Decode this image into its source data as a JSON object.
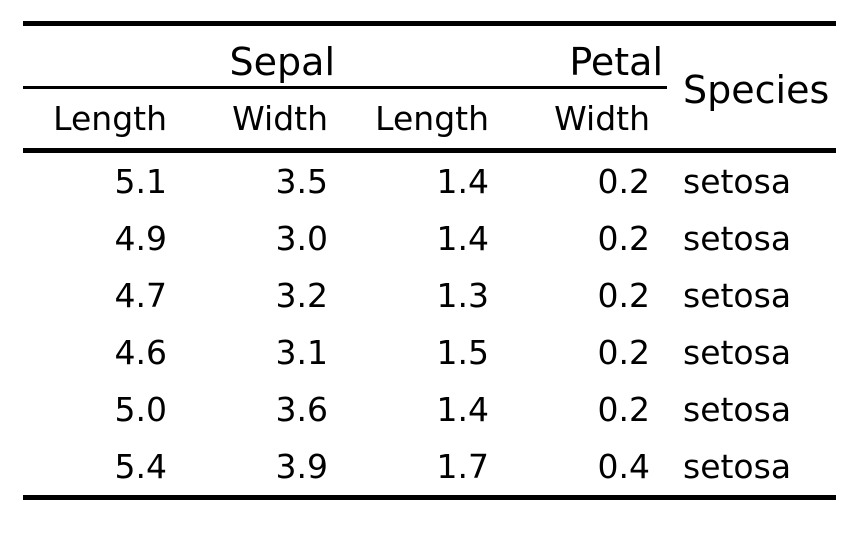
{
  "chart_data": {
    "type": "table",
    "spanners": [
      "Sepal",
      "Petal"
    ],
    "species_header": "Species",
    "sub_headers": [
      "Length",
      "Width",
      "Length",
      "Width"
    ],
    "column_groups": {
      "Sepal": [
        "Length",
        "Width"
      ],
      "Petal": [
        "Length",
        "Width"
      ]
    },
    "rows": [
      [
        "5.1",
        "3.5",
        "1.4",
        "0.2",
        "setosa"
      ],
      [
        "4.9",
        "3.0",
        "1.4",
        "0.2",
        "setosa"
      ],
      [
        "4.7",
        "3.2",
        "1.3",
        "0.2",
        "setosa"
      ],
      [
        "4.6",
        "3.1",
        "1.5",
        "0.2",
        "setosa"
      ],
      [
        "5.0",
        "3.6",
        "1.4",
        "0.2",
        "setosa"
      ],
      [
        "5.4",
        "3.9",
        "1.7",
        "0.4",
        "setosa"
      ]
    ],
    "layout": {
      "grid": "off",
      "rules": "booktabs (thick top, thick mid, thick bottom, thin spanner rule over numeric columns only)",
      "numeric_alignment": "right",
      "species_alignment": "left"
    },
    "colors": {
      "text": "#000000",
      "background": "#ffffff",
      "rule": "#000000"
    }
  }
}
